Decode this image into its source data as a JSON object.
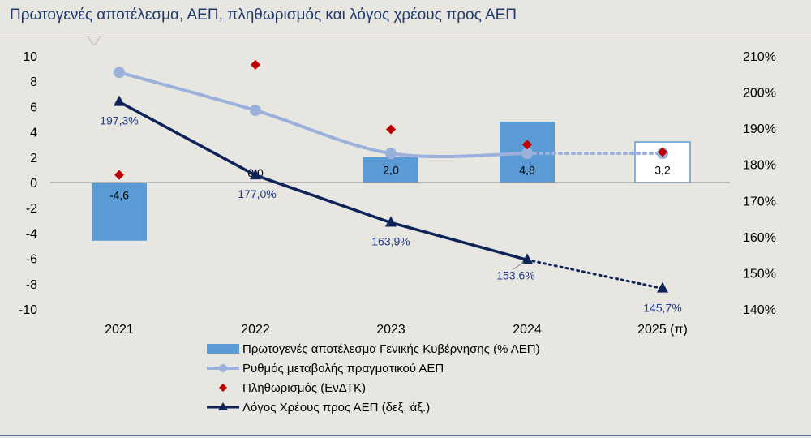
{
  "title": "Πρωτογενές αποτέλεσμα, ΑΕΠ, πληθωρισμός και λόγος χρέους προς ΑΕΠ",
  "chart_data": {
    "type": "bar",
    "title": "Πρωτογενές αποτέλεσμα, ΑΕΠ, πληθωρισμός και λόγος χρέους προς ΑΕΠ",
    "categories": [
      "2021",
      "2022",
      "2023",
      "2024",
      "2025 (π)"
    ],
    "y_left": {
      "min": -10,
      "max": 10,
      "step": 2,
      "ticks": [
        "10",
        "8",
        "6",
        "4",
        "2",
        "0",
        "-2",
        "-4",
        "-6",
        "-8",
        "-10"
      ]
    },
    "y_right": {
      "min": 140,
      "max": 210,
      "step": 10,
      "ticks": [
        "210%",
        "200%",
        "190%",
        "180%",
        "170%",
        "160%",
        "150%",
        "140%"
      ]
    },
    "series": [
      {
        "name": "Πρωτογενές αποτέλεσμα Γενικής Κυβέρνησης (% ΑΕΠ)",
        "type": "bar",
        "axis": "left",
        "color": "#5b9bd5",
        "values": [
          -4.6,
          0.0,
          2.0,
          4.8,
          3.2
        ],
        "labels": [
          "-4,6",
          "0,0",
          "2,0",
          "4,8",
          "3,2"
        ],
        "projected": [
          false,
          false,
          false,
          false,
          true
        ]
      },
      {
        "name": "Ρυθμός μεταβολής πραγματικού ΑΕΠ",
        "type": "line",
        "axis": "left",
        "color": "#9bb1dc",
        "values": [
          8.7,
          5.7,
          2.3,
          2.3,
          2.3
        ],
        "projected_from_index": 3
      },
      {
        "name": "Πληθωρισμός (ΕνΔΤΚ)",
        "type": "scatter",
        "axis": "left",
        "color": "#c00000",
        "values": [
          0.6,
          9.3,
          4.2,
          3.0,
          2.4
        ]
      },
      {
        "name": "Λόγος Χρέους προς ΑΕΠ (δεξ. άξ.)",
        "type": "line",
        "axis": "right",
        "color": "#0e2459",
        "values": [
          197.3,
          177.0,
          163.9,
          153.6,
          145.7
        ],
        "labels": [
          "197,3%",
          "177,0%",
          "163,9%",
          "153,6%",
          "145,7%"
        ],
        "projected_from_index": 3
      }
    ],
    "legend": "bottom-center"
  }
}
